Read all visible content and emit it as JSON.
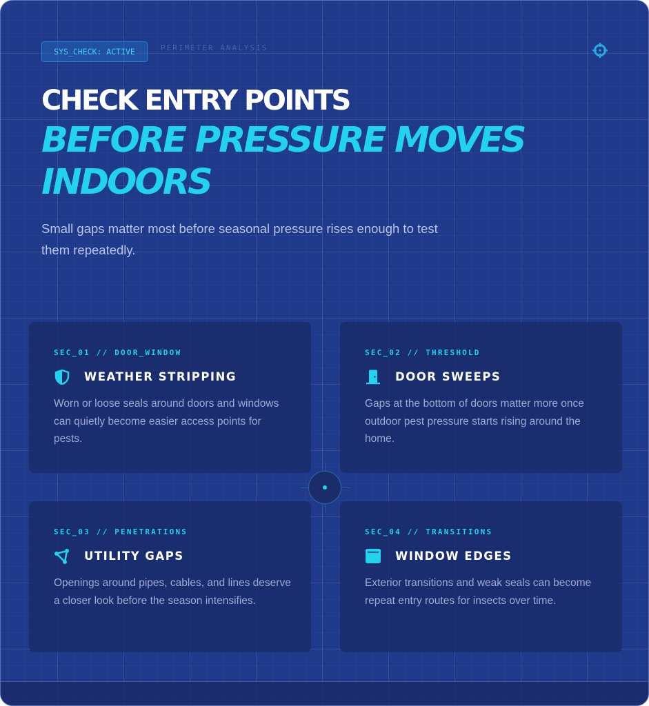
{
  "header": {
    "badge": "SYS_CHECK: ACTIVE",
    "breadcrumb": "PERIMETER ANALYSIS",
    "target_icon": "crosshair-icon"
  },
  "hero": {
    "title_line1": "CHECK ENTRY POINTS",
    "title_line2": "BEFORE PRESSURE MOVES INDOORS",
    "subtitle": "Small gaps matter most before seasonal pressure rises enough to test them repeatedly."
  },
  "colors": {
    "background": "#1f3a8a",
    "accent": "#22d3ee",
    "card": "#1c2f6e",
    "text_muted": "#9eabd2"
  },
  "cards": [
    {
      "tag": "SEC_01 // DOOR_WINDOW",
      "icon": "shield-icon",
      "title": "WEATHER STRIPPING",
      "description": "Worn or loose seals around doors and windows can quietly become easier access points for pests."
    },
    {
      "tag": "SEC_02 // THRESHOLD",
      "icon": "door-icon",
      "title": "DOOR SWEEPS",
      "description": "Gaps at the bottom of doors matter more once outdoor pest pressure starts rising around the home."
    },
    {
      "tag": "SEC_03 // PENETRATIONS",
      "icon": "network-icon",
      "title": "UTILITY GAPS",
      "description": "Openings around pipes, cables, and lines deserve a closer look before the season intensifies."
    },
    {
      "tag": "SEC_04 // TRANSITIONS",
      "icon": "window-icon",
      "title": "WINDOW EDGES",
      "description": "Exterior transitions and weak seals can become repeat entry routes for insects over time."
    }
  ]
}
